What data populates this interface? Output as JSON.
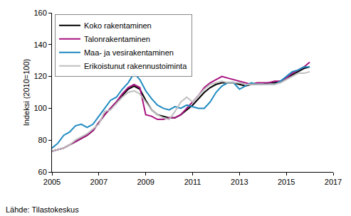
{
  "chart_data": {
    "type": "line",
    "y_label": "Indeksi (2010=100)",
    "annotations": [
      "Lähde: Tilastokeskus"
    ],
    "x": [
      2005,
      2005.25,
      2005.5,
      2005.75,
      2006,
      2006.25,
      2006.5,
      2006.75,
      2007,
      2007.25,
      2007.5,
      2007.75,
      2008,
      2008.25,
      2008.5,
      2008.75,
      2009,
      2009.25,
      2009.5,
      2009.75,
      2010,
      2010.25,
      2010.5,
      2010.75,
      2011,
      2011.25,
      2011.5,
      2011.75,
      2012,
      2012.25,
      2012.5,
      2012.75,
      2013,
      2013.25,
      2013.5,
      2013.75,
      2014,
      2014.25,
      2014.5,
      2014.75,
      2015,
      2015.25,
      2015.5,
      2015.75,
      2016
    ],
    "series": [
      {
        "name": "Koko rakentaminen",
        "color": "#000000",
        "values": [
          73,
          74,
          75,
          77,
          79,
          81,
          83,
          86,
          91,
          96,
          100,
          104,
          108,
          112,
          114,
          112,
          105,
          99,
          96,
          95,
          94,
          94,
          96,
          99,
          102,
          106,
          110,
          113,
          115,
          116,
          116,
          116,
          115,
          114,
          115,
          115,
          115,
          116,
          116,
          117,
          119,
          121,
          123,
          125,
          126
        ]
      },
      {
        "name": "Talonrakentaminen",
        "color": "#a8127f",
        "values": [
          73,
          74,
          75,
          77,
          79,
          81,
          83,
          86,
          91,
          96,
          100,
          104,
          109,
          113,
          115,
          113,
          96,
          95,
          93,
          93,
          94,
          94,
          96,
          100,
          104,
          108,
          113,
          116,
          118,
          120,
          119,
          118,
          117,
          116,
          115,
          116,
          116,
          116,
          117,
          117,
          119,
          122,
          124,
          126,
          129
        ]
      },
      {
        "name": "Maa- ja vesirakentaminen",
        "color": "#1f8ac0",
        "values": [
          75,
          78,
          83,
          85,
          89,
          90,
          88,
          90,
          95,
          100,
          105,
          107,
          112,
          116,
          122,
          118,
          111,
          106,
          102,
          100,
          99,
          101,
          100,
          102,
          101,
          100,
          100,
          104,
          110,
          114,
          116,
          116,
          112,
          114,
          116,
          115,
          115,
          115,
          115,
          117,
          120,
          123,
          124,
          126,
          126
        ]
      },
      {
        "name": "Erikoistunut rakennustoiminta",
        "color": "#bfbfbf",
        "values": [
          73,
          74,
          75,
          77,
          80,
          82,
          84,
          87,
          90,
          98,
          99,
          103,
          107,
          110,
          111,
          109,
          104,
          99,
          96,
          94,
          93,
          98,
          104,
          107,
          104,
          108,
          112,
          115,
          116,
          117,
          116,
          116,
          116,
          115,
          115,
          115,
          115,
          115,
          115,
          116,
          118,
          120,
          122,
          122,
          123
        ]
      }
    ],
    "xlim": [
      2005,
      2017
    ],
    "xticks": [
      2005,
      2007,
      2009,
      2011,
      2013,
      2015,
      2017
    ],
    "ylim": [
      60,
      160
    ],
    "yticks": [
      60,
      80,
      100,
      120,
      140,
      160
    ],
    "grid": false,
    "legend": "upper left"
  }
}
